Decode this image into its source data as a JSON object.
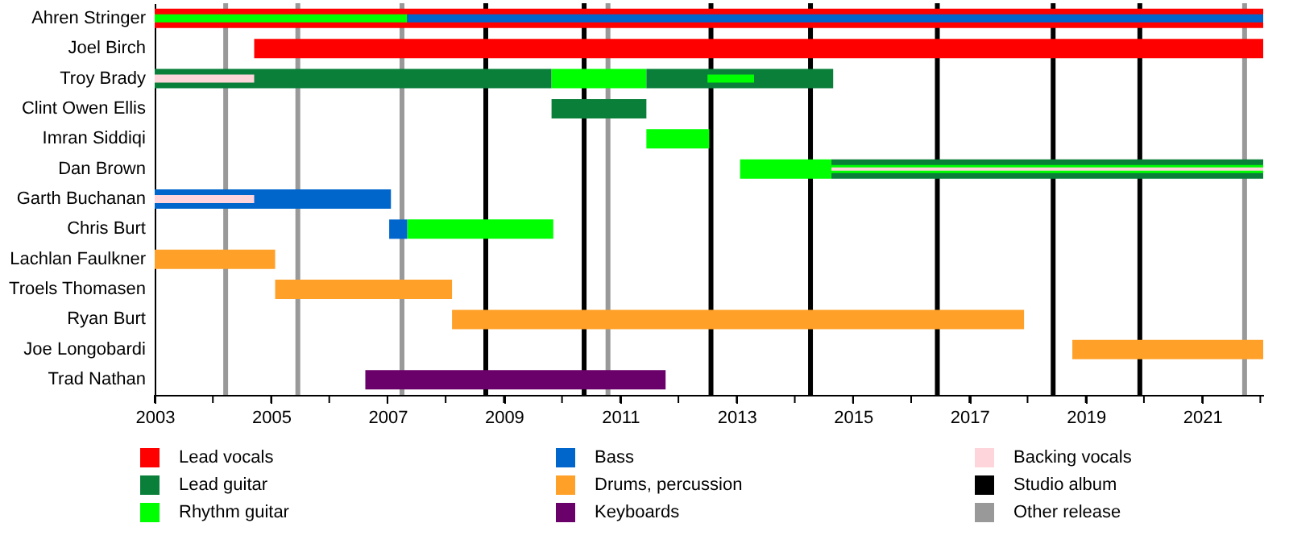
{
  "chart_data": {
    "type": "bar",
    "orientation": "horizontal",
    "categories": [
      "Ahren Stringer",
      "Joel Birch",
      "Troy Brady",
      "Clint Owen Ellis",
      "Imran Siddiqi",
      "Dan Brown",
      "Garth Buchanan",
      "Chris Burt",
      "Lachlan Faulkner",
      "Troels Thomasen",
      "Ryan Burt",
      "Joe Longobardi",
      "Trad Nathan"
    ],
    "series": [
      {
        "name": "Lead vocals",
        "color": "#ff0000",
        "base": [
          2003,
          2004.71,
          null,
          null,
          null,
          null,
          null,
          null,
          null,
          null,
          null,
          null,
          null
        ],
        "values": [
          19.05,
          17.34,
          null,
          null,
          null,
          null,
          null,
          null,
          null,
          null,
          null,
          null,
          null
        ]
      },
      {
        "name": "Lead guitar",
        "color": "#0a7f3a",
        "base": [
          null,
          null,
          2003,
          2009.82,
          null,
          2014.63,
          null,
          null,
          null,
          null,
          null,
          null,
          null
        ],
        "values": [
          null,
          null,
          6.82,
          1.63,
          null,
          7.42,
          null,
          null,
          null,
          null,
          null,
          null,
          null
        ]
      },
      {
        "name": "Rhythm guitar",
        "color": "#00ff00",
        "base": [
          null,
          null,
          2009.82,
          null,
          2011.45,
          2013.06,
          null,
          2007.34,
          null,
          null,
          null,
          null,
          null
        ],
        "values": [
          null,
          null,
          1.63,
          null,
          1.08,
          1.57,
          null,
          2.51,
          null,
          null,
          null,
          null,
          null
        ]
      },
      {
        "name": "Bass",
        "color": "#0066cc",
        "base": [
          null,
          null,
          null,
          null,
          null,
          null,
          2003,
          2007.03,
          null,
          null,
          null,
          null,
          null
        ],
        "values": [
          null,
          null,
          null,
          null,
          null,
          null,
          4.06,
          0.31,
          null,
          null,
          null,
          null,
          null
        ]
      },
      {
        "name": "Drums, percussion",
        "color": "#ffa028",
        "base": [
          null,
          null,
          null,
          null,
          null,
          null,
          null,
          null,
          2003,
          2005.07,
          2008.11,
          2018.77,
          null
        ],
        "values": [
          null,
          null,
          null,
          null,
          null,
          null,
          null,
          null,
          2.07,
          3.04,
          9.83,
          3.28,
          null
        ]
      },
      {
        "name": "Keyboards",
        "color": "#6a006a",
        "base": [
          null,
          null,
          null,
          null,
          null,
          null,
          null,
          null,
          null,
          null,
          null,
          null,
          2006.62
        ],
        "values": [
          null,
          null,
          null,
          null,
          null,
          null,
          null,
          null,
          null,
          null,
          null,
          null,
          5.16
        ]
      },
      {
        "color": "#0a7f3a",
        "base": [
          null,
          null,
          2011.45,
          null,
          null,
          null,
          null,
          null,
          null,
          null,
          null,
          null,
          null
        ],
        "values": [
          null,
          null,
          3.21,
          null,
          null,
          null,
          null,
          null,
          null,
          null,
          null,
          null,
          null
        ]
      },
      {
        "color": "#00ff00",
        "base": [
          2003,
          null,
          2012.5,
          null,
          null,
          2014.63,
          null,
          null,
          null,
          null,
          null,
          null,
          null
        ],
        "values": [
          4.34,
          null,
          0.8,
          null,
          null,
          7.42,
          null,
          null,
          null,
          null,
          null,
          null,
          null
        ]
      },
      {
        "color": "#0066cc",
        "base": [
          2007.34,
          null,
          null,
          null,
          null,
          null,
          null,
          null,
          null,
          null,
          null,
          null,
          null
        ],
        "values": [
          14.71,
          null,
          null,
          null,
          null,
          null,
          null,
          null,
          null,
          null,
          null,
          null,
          null
        ]
      },
      {
        "name": "Backing vocals",
        "color": "#ffd5dc",
        "base": [
          null,
          null,
          2003,
          null,
          null,
          2014.63,
          2003,
          null,
          null,
          null,
          null,
          null,
          null
        ],
        "values": [
          null,
          null,
          1.71,
          null,
          null,
          7.42,
          1.71,
          null,
          null,
          null,
          null,
          null,
          null
        ]
      }
    ],
    "xlim": [
      2003,
      2022.05
    ],
    "xticks": [
      2003,
      {
        "value": 2004,
        "label": null
      },
      2005,
      {
        "value": 2006,
        "label": null
      },
      2007,
      {
        "value": 2008,
        "label": null
      },
      2009,
      {
        "value": 2010,
        "label": null
      },
      2011,
      {
        "value": 2012,
        "label": null
      },
      2013,
      {
        "value": 2014,
        "label": null
      },
      2015,
      {
        "value": 2016,
        "label": null
      },
      2017,
      {
        "value": 2018,
        "label": null
      },
      2019,
      {
        "value": 2020,
        "label": null
      },
      2021,
      {
        "value": 2022,
        "label": null
      }
    ],
    "ref_lines": [
      {
        "axis": "x",
        "value": 2008.69,
        "label": "Studio album",
        "color": "#000000"
      },
      {
        "axis": "x",
        "value": 2010.38,
        "color": "#000000"
      },
      {
        "axis": "x",
        "value": 2012.56,
        "color": "#000000"
      },
      {
        "axis": "x",
        "value": 2014.27,
        "color": "#000000"
      },
      {
        "axis": "x",
        "value": 2016.45,
        "color": "#000000"
      },
      {
        "axis": "x",
        "value": 2018.44,
        "color": "#000000"
      },
      {
        "axis": "x",
        "value": 2019.93,
        "color": "#000000"
      },
      {
        "axis": "x",
        "value": 2004.22,
        "label": "Other release",
        "color": "#999999"
      },
      {
        "axis": "x",
        "value": 2005.46,
        "color": "#999999"
      },
      {
        "axis": "x",
        "value": 2007.25,
        "color": "#999999"
      },
      {
        "axis": "x",
        "value": 2010.79,
        "color": "#999999"
      },
      {
        "axis": "x",
        "value": 2021.73,
        "color": "#999999"
      }
    ],
    "legend": "bottom"
  }
}
